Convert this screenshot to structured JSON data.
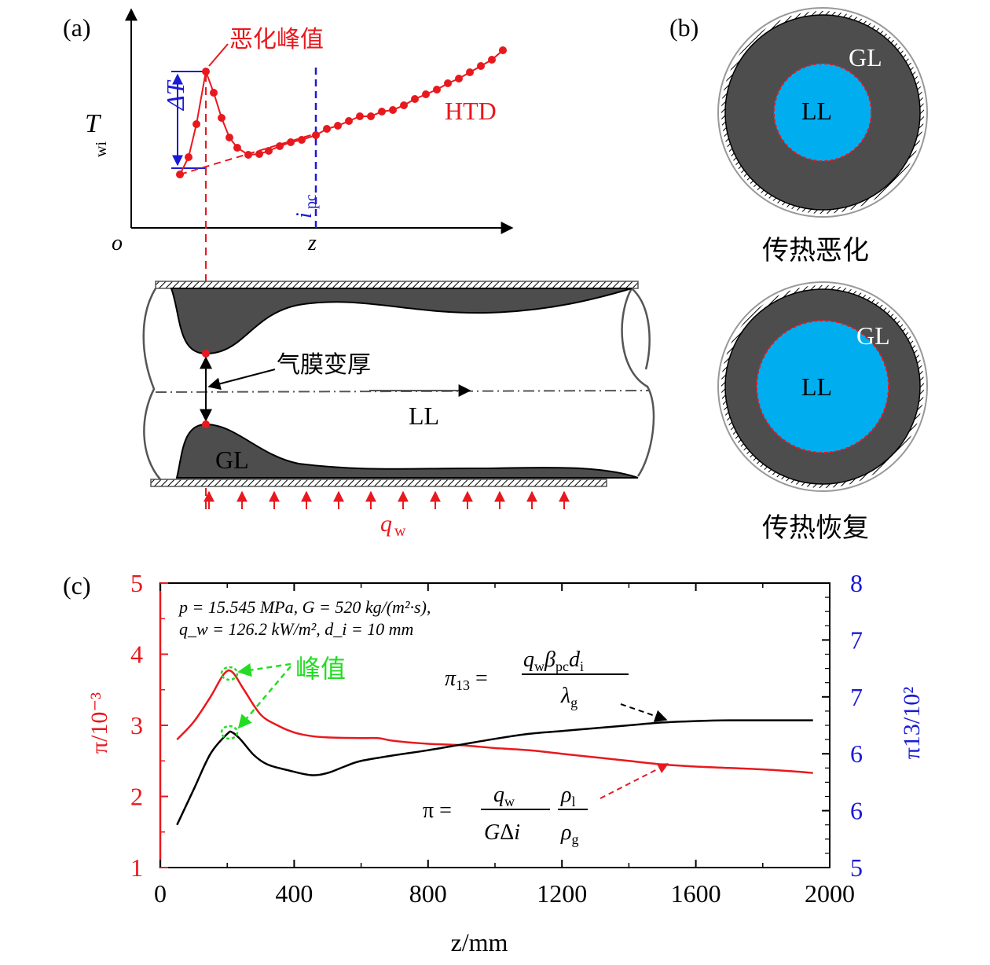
{
  "panel_a": {
    "label": "(a)",
    "y_axis_label": "T",
    "y_axis_sub": "wi",
    "origin_label": "o",
    "x_axis_label": "z",
    "peak_annotation": "恶化峰值",
    "delta_label": "ΔT",
    "curve_label": "HTD",
    "ipc_label": "i",
    "ipc_sub": "pc",
    "tube_annotation": "气膜变厚",
    "core_label": "LL",
    "film_label": "GL",
    "heatflux_label": "q",
    "heatflux_sub": "w",
    "colors": {
      "curve": "#e8191e",
      "delta": "#1a1ad6",
      "ipc": "#1a1ad6",
      "film": "#4d4d4d"
    }
  },
  "panel_b": {
    "label": "(b)",
    "circles": [
      {
        "caption": "传热恶化",
        "outer_label": "GL",
        "inner_label": "LL",
        "inner_fraction": 0.37
      },
      {
        "caption": "传热恢复",
        "outer_label": "GL",
        "inner_label": "LL",
        "inner_fraction": 0.61
      }
    ],
    "colors": {
      "outer": "#4d4d4d",
      "inner": "#00aeef",
      "boundary": "#e8191e"
    }
  },
  "panel_c": {
    "label": "(c)",
    "conditions_line1": "p = 15.545 MPa, G = 520 kg/(m²·s),",
    "conditions_line2": "q_w = 126.2 kW/m², d_i = 10 mm",
    "peak_label": "峰值",
    "eq_pi13": "π13 = qw βpc di / λg",
    "eq_pi": "π = qw / (G Δi) · ρl / ρg",
    "colors": {
      "pi": "#e8191e",
      "pi13": "#000000",
      "right_axis": "#1a1ad6",
      "peak": "#22dd22"
    }
  },
  "chart_data": {
    "type": "line",
    "xlabel": "z/mm",
    "ylabel_left": "π/10⁻³",
    "ylabel_right": "π13/10²",
    "xlim": [
      0,
      2000
    ],
    "ylim_left": [
      1,
      5
    ],
    "ylim_right": [
      5,
      8
    ],
    "x_ticks": [
      "0",
      "400",
      "800",
      "1200",
      "1600",
      "2000"
    ],
    "y_left_ticks": [
      "1",
      "2",
      "3",
      "4",
      "5"
    ],
    "y_right_ticks": [
      "5",
      "6",
      "6",
      "7",
      "7",
      "8"
    ],
    "series": [
      {
        "axis": "left",
        "x": [
          50,
          100,
          150,
          190,
          215,
          250,
          300,
          350,
          400,
          450,
          500,
          600,
          650,
          700,
          800,
          900,
          1000,
          1100,
          1200,
          1300,
          1400,
          1500,
          1600,
          1700,
          1800,
          1900,
          1950
        ],
        "y": [
          2.8,
          3.05,
          3.4,
          3.72,
          3.75,
          3.5,
          3.15,
          3.0,
          2.9,
          2.85,
          2.83,
          2.82,
          2.82,
          2.78,
          2.74,
          2.72,
          2.68,
          2.65,
          2.6,
          2.55,
          2.5,
          2.45,
          2.42,
          2.4,
          2.38,
          2.35,
          2.33
        ]
      },
      {
        "axis": "left",
        "x": [
          50,
          100,
          150,
          200,
          215,
          240,
          280,
          320,
          380,
          450,
          500,
          550,
          600,
          700,
          800,
          900,
          1000,
          1100,
          1200,
          1300,
          1400,
          1500,
          1600,
          1700,
          1800,
          1900,
          1950
        ],
        "y": [
          1.6,
          2.1,
          2.6,
          2.88,
          2.9,
          2.8,
          2.58,
          2.45,
          2.37,
          2.3,
          2.33,
          2.42,
          2.5,
          2.58,
          2.65,
          2.73,
          2.81,
          2.88,
          2.92,
          2.96,
          3.0,
          3.04,
          3.06,
          3.07,
          3.07,
          3.07,
          3.07
        ]
      }
    ]
  }
}
